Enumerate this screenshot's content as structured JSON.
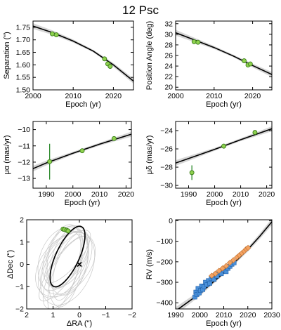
{
  "title": "12 Psc",
  "chart_data": [
    {
      "type": "scatter",
      "xlabel": "Epoch (yr)",
      "ylabel": "Separation (\")",
      "xlim": [
        2000,
        2025
      ],
      "ylim": [
        1.5,
        1.775
      ],
      "xticks": [
        2000,
        2010,
        2020
      ],
      "yticks": [
        1.5,
        1.55,
        1.6,
        1.65,
        1.7,
        1.75
      ],
      "ytick_labels": [
        "1.50",
        "1.55",
        "1.60",
        "1.65",
        "1.70",
        "1.75"
      ],
      "model": {
        "x": [
          2000,
          2005,
          2010,
          2015,
          2020,
          2025
        ],
        "y": [
          1.755,
          1.728,
          1.695,
          1.655,
          1.6,
          1.535
        ]
      },
      "points": [
        {
          "x": 2004.8,
          "y": 1.724
        },
        {
          "x": 2005.8,
          "y": 1.72
        },
        {
          "x": 2017.8,
          "y": 1.624
        },
        {
          "x": 2018.6,
          "y": 1.604
        },
        {
          "x": 2019.2,
          "y": 1.594
        }
      ]
    },
    {
      "type": "scatter",
      "xlabel": "Epoch (yr)",
      "ylabel": "Position Angle (deg)",
      "xlim": [
        2000,
        2025
      ],
      "ylim": [
        19.5,
        32.5
      ],
      "xticks": [
        2000,
        2010,
        2020
      ],
      "yticks": [
        20,
        22,
        24,
        26,
        28,
        30,
        32
      ],
      "model": {
        "x": [
          2000,
          2005,
          2010,
          2015,
          2020,
          2025
        ],
        "y": [
          30.3,
          28.9,
          27.5,
          25.9,
          24.1,
          22.4
        ]
      },
      "points": [
        {
          "x": 2004.8,
          "y": 28.6
        },
        {
          "x": 2005.8,
          "y": 28.5
        },
        {
          "x": 2017.8,
          "y": 25.0
        },
        {
          "x": 2018.8,
          "y": 24.2
        },
        {
          "x": 2019.4,
          "y": 24.4
        }
      ]
    },
    {
      "type": "scatter",
      "xlabel": "Epoch (yr)",
      "ylabel": "μα (mas/yr)",
      "xlim": [
        1985,
        2022
      ],
      "ylim": [
        -13.6,
        -9.5
      ],
      "xticks": [
        1990,
        2000,
        2010,
        2020
      ],
      "yticks": [
        -13,
        -12,
        -11,
        -10
      ],
      "model": {
        "x": [
          1985,
          1990,
          2000,
          2010,
          2022
        ],
        "y": [
          -12.4,
          -12.05,
          -11.45,
          -10.9,
          -10.28
        ]
      },
      "points": [
        {
          "x": 1991.25,
          "y": -11.97,
          "yerr": 1.1
        },
        {
          "x": 2003.5,
          "y": -11.3
        },
        {
          "x": 2015.5,
          "y": -10.55
        }
      ]
    },
    {
      "type": "scatter",
      "xlabel": "Epoch (yr)",
      "ylabel": "μδ (mas/yr)",
      "xlim": [
        1985,
        2022
      ],
      "ylim": [
        -30.3,
        -23
      ],
      "xticks": [
        1990,
        2000,
        2010,
        2020
      ],
      "yticks": [
        -30,
        -28,
        -26,
        -24
      ],
      "model": {
        "x": [
          1985,
          1990,
          2000,
          2010,
          2022
        ],
        "y": [
          -27.55,
          -27.05,
          -26.05,
          -25.0,
          -23.8
        ]
      },
      "points": [
        {
          "x": 1991.25,
          "y": -28.6,
          "yerr": 0.8
        },
        {
          "x": 2003.5,
          "y": -25.7
        },
        {
          "x": 2015.5,
          "y": -24.2
        }
      ]
    },
    {
      "type": "scatter",
      "xlabel": "ΔRA (\")",
      "ylabel": "ΔDec (\")",
      "xlim": [
        2,
        -2
      ],
      "ylim": [
        -2,
        2
      ],
      "xticks": [
        2,
        1,
        0,
        -1,
        -2
      ],
      "yticks": [
        -2,
        -1,
        0,
        1,
        2
      ],
      "host_star": {
        "x": 0,
        "y": 0
      },
      "orbit": {
        "cx": 0.45,
        "cy": 0.35,
        "a": 1.25,
        "b": 0.52,
        "angle_deg": 65
      },
      "points": [
        {
          "x": 0.62,
          "y": 1.58
        },
        {
          "x": 0.56,
          "y": 1.56
        },
        {
          "x": 0.48,
          "y": 1.53
        },
        {
          "x": 0.43,
          "y": 1.5
        }
      ]
    },
    {
      "type": "scatter",
      "xlabel": "Epoch (yr)",
      "ylabel": "RV (m/s)",
      "xlim": [
        1990,
        2030
      ],
      "ylim": [
        -430,
        5
      ],
      "xticks": [
        1990,
        2000,
        2010,
        2020,
        2030
      ],
      "yticks": [
        -400,
        -300,
        -200,
        -100,
        0
      ],
      "model": {
        "x": [
          1990,
          2000,
          2010,
          2020,
          2025,
          2030
        ],
        "y": [
          -440,
          -355,
          -255,
          -140,
          -75,
          -5
        ]
      },
      "series": [
        {
          "marker": "square",
          "color": "#4a90d9",
          "points": [
            {
              "x": 1998,
              "y": -372
            },
            {
              "x": 1998.4,
              "y": -348
            },
            {
              "x": 1998.8,
              "y": -360
            },
            {
              "x": 1999.3,
              "y": -330
            },
            {
              "x": 1999.8,
              "y": -352
            },
            {
              "x": 2000.3,
              "y": -340
            },
            {
              "x": 2000.8,
              "y": -318
            },
            {
              "x": 2001.3,
              "y": -335
            },
            {
              "x": 2001.8,
              "y": -322
            },
            {
              "x": 2002.4,
              "y": -300
            },
            {
              "x": 2003,
              "y": -312
            },
            {
              "x": 2003.6,
              "y": -292
            },
            {
              "x": 2004.2,
              "y": -305
            },
            {
              "x": 2004.8,
              "y": -282
            },
            {
              "x": 2005.4,
              "y": -272
            },
            {
              "x": 2006,
              "y": -286
            },
            {
              "x": 2006.6,
              "y": -262
            },
            {
              "x": 2007.2,
              "y": -270
            },
            {
              "x": 2008,
              "y": -250
            },
            {
              "x": 2009,
              "y": -258
            },
            {
              "x": 2010,
              "y": -240
            },
            {
              "x": 2011,
              "y": -248
            },
            {
              "x": 2011.8,
              "y": -232
            },
            {
              "x": 2012.6,
              "y": -222
            },
            {
              "x": 2013.4,
              "y": -212
            },
            {
              "x": 2014.3,
              "y": -205
            }
          ]
        },
        {
          "marker": "diamond",
          "color": "#f4a261",
          "points": [
            {
              "x": 2005,
              "y": -268
            },
            {
              "x": 2006.5,
              "y": -258
            },
            {
              "x": 2008,
              "y": -244
            },
            {
              "x": 2009.5,
              "y": -232
            },
            {
              "x": 2011,
              "y": -220
            },
            {
              "x": 2012.5,
              "y": -205
            },
            {
              "x": 2014,
              "y": -192
            },
            {
              "x": 2015.5,
              "y": -178
            },
            {
              "x": 2016.5,
              "y": -168
            },
            {
              "x": 2017.5,
              "y": -158
            },
            {
              "x": 2018.5,
              "y": -148
            },
            {
              "x": 2019.3,
              "y": -138
            },
            {
              "x": 2020.1,
              "y": -132
            }
          ]
        }
      ]
    }
  ]
}
